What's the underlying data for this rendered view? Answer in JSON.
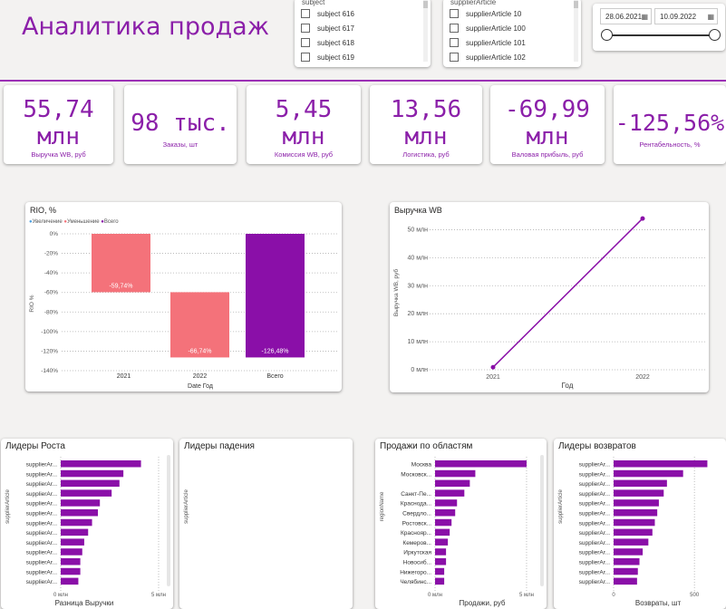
{
  "page_title": "Аналитика продаж",
  "colors": {
    "accent": "#8b1fa9",
    "increase": "#4a9fe0",
    "decrease": "#f4727a",
    "total": "#8a0fa8"
  },
  "slicer_subject": {
    "header": "subject",
    "items": [
      "subject 616",
      "subject 617",
      "subject 618",
      "subject 619"
    ]
  },
  "slicer_article": {
    "header": "supplierArticle",
    "items": [
      "supplierArticle 10",
      "supplierArticle 100",
      "supplierArticle 101",
      "supplierArticle 102"
    ]
  },
  "date_range": {
    "start": "28.06.2021",
    "end": "10.09.2022",
    "start_icon": "calendar-icon",
    "end_icon": "calendar-icon"
  },
  "kpis": [
    {
      "value": "55,74 млн",
      "label": "Выручка WB, руб"
    },
    {
      "value": "98 тыс.",
      "label": "Заказы, шт"
    },
    {
      "value": "5,45 млн",
      "label": "Комиссия WB, руб"
    },
    {
      "value": "13,56 млн",
      "label": "Логистика, руб"
    },
    {
      "value": "-69,99 млн",
      "label": "Валовая прибыль, руб"
    },
    {
      "value": "-125,56%",
      "label": "Рентабельность, %"
    }
  ],
  "chart_data": [
    {
      "type": "bar",
      "subtype": "waterfall",
      "title": "RIO, %",
      "legend": [
        "Увеличение",
        "Уменьшение",
        "Всего"
      ],
      "legend_position": "top-left",
      "categories": [
        "2021",
        "2022",
        "Всего"
      ],
      "values": [
        -59.74,
        -66.74,
        -126.48
      ],
      "data_labels": [
        "-59,74%",
        "-66,74%",
        "-126,48%"
      ],
      "ylabel": "RIO %",
      "xlabel": "Date Год",
      "ylim": [
        -140,
        0
      ],
      "yticks": [
        "0%",
        "-20%",
        "-40%",
        "-60%",
        "-80%",
        "-100%",
        "-120%",
        "-140%"
      ],
      "grid": true
    },
    {
      "type": "line",
      "title": "Выручка WB",
      "x": [
        "2021",
        "2022"
      ],
      "values": [
        0.9,
        54
      ],
      "ylabel": "Выручка WB, руб",
      "xlabel": "Год",
      "ylim": [
        0,
        55
      ],
      "yticks": [
        "0 млн",
        "10 млн",
        "20 млн",
        "30 млн",
        "40 млн",
        "50 млн"
      ],
      "grid": true
    },
    {
      "type": "bar",
      "orientation": "horizontal",
      "title": "Лидеры Роста",
      "categories": [
        "supplierAr...",
        "supplierAr...",
        "supplierAr...",
        "supplierAr...",
        "supplierAr...",
        "supplierAr...",
        "supplierAr...",
        "supplierAr...",
        "supplierAr...",
        "supplierAr...",
        "supplierAr...",
        "supplierAr...",
        "supplierAr..."
      ],
      "values": [
        4.1,
        3.2,
        3.0,
        2.6,
        2.0,
        1.9,
        1.6,
        1.4,
        1.2,
        1.1,
        1.0,
        1.0,
        0.9
      ],
      "ylabel": "supplierArticle",
      "xlabel": "Разница Выручки",
      "xlim": [
        0,
        5
      ],
      "xticks": [
        "0 млн",
        "5 млн"
      ],
      "grid": true
    },
    {
      "type": "bar",
      "orientation": "horizontal",
      "title": "Лидеры падения",
      "categories": [],
      "values": [],
      "ylabel": "supplierArticle"
    },
    {
      "type": "bar",
      "orientation": "horizontal",
      "title": "Продажи по областям",
      "categories": [
        "Москва",
        "Московск...",
        "",
        "Санкт-Пе...",
        "Краснода...",
        "Свердло...",
        "Ростовск...",
        "Краснояр...",
        "Кемеров...",
        "Иркутская",
        "Новосиб...",
        "Нижегоро...",
        "Челябинс..."
      ],
      "values": [
        5.0,
        2.2,
        1.9,
        1.6,
        1.2,
        1.1,
        0.9,
        0.8,
        0.7,
        0.6,
        0.6,
        0.5,
        0.5
      ],
      "ylabel": "regionName",
      "xlabel": "Продажи, руб",
      "xlim": [
        0,
        5.2
      ],
      "xticks": [
        "0 млн",
        "5 млн"
      ],
      "grid": true
    },
    {
      "type": "bar",
      "orientation": "horizontal",
      "title": "Лидеры возвратов",
      "categories": [
        "supplierAr...",
        "supplierAr...",
        "supplierAr...",
        "supplierAr...",
        "supplierAr...",
        "supplierAr...",
        "supplierAr...",
        "supplierAr...",
        "supplierAr...",
        "supplierAr...",
        "supplierAr...",
        "supplierAr...",
        "supplierAr..."
      ],
      "values": [
        580,
        430,
        330,
        310,
        280,
        270,
        255,
        240,
        215,
        180,
        160,
        150,
        145
      ],
      "ylabel": "supplierArticle",
      "xlabel": "Возвраты, шт",
      "xlim": [
        0,
        600
      ],
      "xticks": [
        "0",
        "500"
      ],
      "grid": true
    }
  ]
}
